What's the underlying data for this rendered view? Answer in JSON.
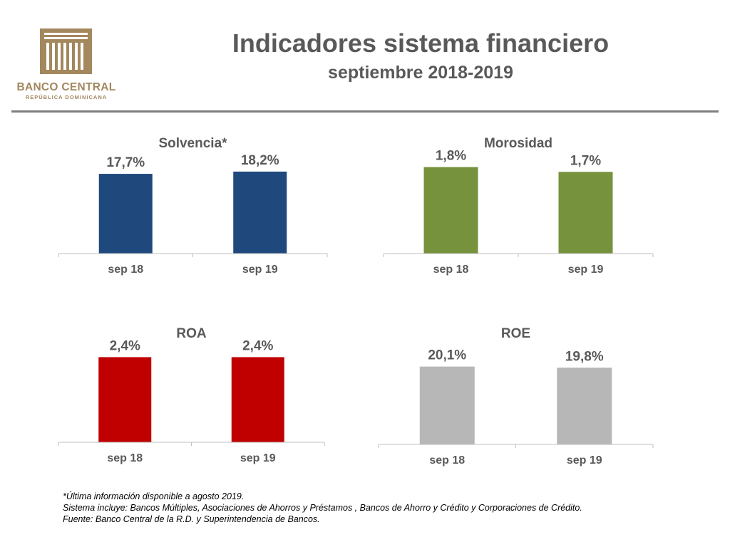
{
  "logo": {
    "name": "BANCO CENTRAL",
    "subname": "REPÚBLICA DOMINICANA",
    "color": "#a3875d"
  },
  "header": {
    "title": "Indicadores sistema financiero",
    "subtitle": "septiembre 2018-2019"
  },
  "chart_data": [
    {
      "type": "bar",
      "title": "Solvencia*",
      "categories": [
        "sep 18",
        "sep 19"
      ],
      "values": [
        17.7,
        18.2
      ],
      "labels": [
        "17,7%",
        "18,2%"
      ],
      "color": "#1f497d",
      "ylim": [
        0,
        22.3
      ]
    },
    {
      "type": "bar",
      "title": "Morosidad",
      "categories": [
        "sep 18",
        "sep 19"
      ],
      "values": [
        1.8,
        1.7
      ],
      "labels": [
        "1,8%",
        "1,7%"
      ],
      "color": "#76923c",
      "ylim": [
        0,
        2.09
      ]
    },
    {
      "type": "bar",
      "title": "ROA",
      "categories": [
        "sep 18",
        "sep 19"
      ],
      "values": [
        2.4,
        2.4
      ],
      "labels": [
        "2,4%",
        "2,4%"
      ],
      "color": "#c00000",
      "ylim": [
        0,
        2.79
      ]
    },
    {
      "type": "bar",
      "title": "ROE",
      "categories": [
        "sep 18",
        "sep 19"
      ],
      "values": [
        20.1,
        19.8
      ],
      "labels": [
        "20,1%",
        "19,8%"
      ],
      "color": "#b7b7b7",
      "ylim": [
        0,
        26.1
      ]
    }
  ],
  "notes": {
    "line1": "*Última información disponible a agosto 2019.",
    "line2": "Sistema incluye: Bancos Múltiples, Asociaciones de Ahorros y Préstamos , Bancos de Ahorro y Crédito  y Corporaciones de Crédito.",
    "line3": "Fuente: Banco Central de la R.D. y Superintendencia de Bancos."
  }
}
